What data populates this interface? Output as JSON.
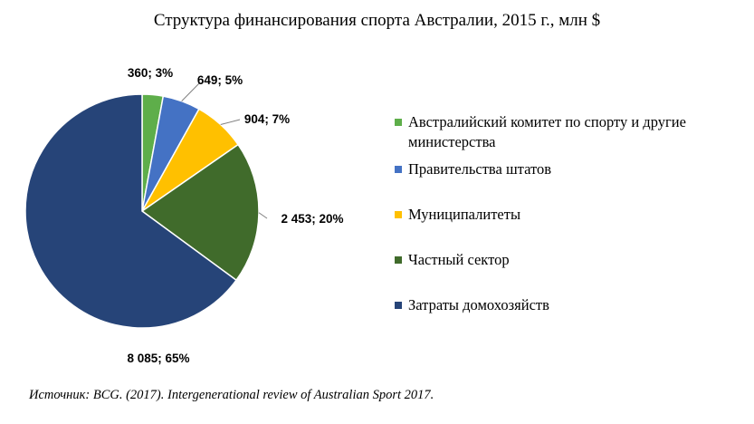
{
  "chart_data": {
    "type": "pie",
    "title": "Структура  финансирования  спорта Австралии,  2015 г., млн $",
    "categories": [
      "Австралийский  комитет по спорту и другие министерства",
      "Правительства  штатов",
      "Муниципалитеты",
      "Частный сектор",
      "Затраты домохозяйств"
    ],
    "values": [
      360,
      649,
      904,
      2453,
      8085
    ],
    "percents": [
      3,
      5,
      7,
      20,
      65
    ],
    "data_labels": [
      "360; 3%",
      "649; 5%",
      "904; 7%",
      "2 453; 20%",
      "8 085; 65%"
    ],
    "colors": [
      "#5eae4a",
      "#4472c4",
      "#ffc000",
      "#406b2b",
      "#264478"
    ],
    "legend_position": "right"
  },
  "source": "Источник: BCG. (2017). Intergenerational review of Australian Sport 2017."
}
